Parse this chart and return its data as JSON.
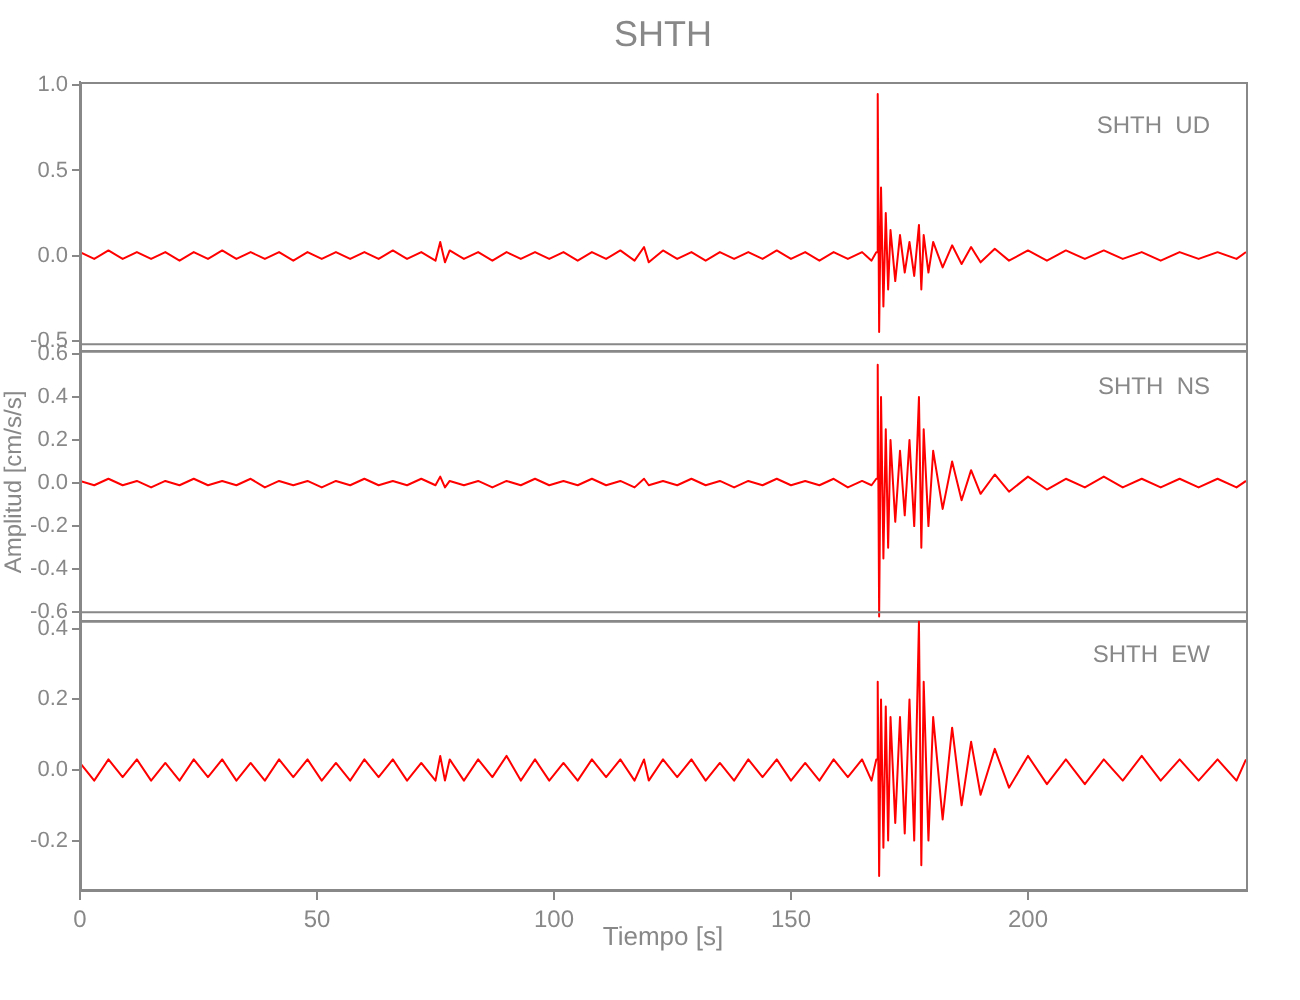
{
  "chart_data": [
    {
      "type": "line",
      "title": "SHTH",
      "annotations": [
        "SHTH  UD"
      ],
      "tick_labels": "y",
      "xlim": [
        0,
        246
      ],
      "xticks": [
        0,
        50,
        100,
        150,
        200
      ],
      "ylim": [
        -0.56,
        1.02
      ],
      "yticks": [
        {
          "value": -0.5,
          "label": "-0.5"
        },
        {
          "value": 0,
          "label": "0.0"
        },
        {
          "value": 0.5,
          "label": "0.5"
        },
        {
          "value": 1,
          "label": "1.0"
        }
      ],
      "x": [
        0,
        3,
        6,
        9,
        12,
        15,
        18,
        21,
        24,
        27,
        30,
        33,
        36,
        39,
        42,
        45,
        48,
        51,
        54,
        57,
        60,
        63,
        66,
        69,
        72,
        75,
        76,
        77,
        78,
        81,
        84,
        87,
        90,
        93,
        96,
        99,
        102,
        105,
        108,
        111,
        114,
        117,
        119,
        120,
        123,
        126,
        129,
        132,
        135,
        138,
        141,
        144,
        147,
        150,
        153,
        156,
        159,
        162,
        165,
        167,
        168,
        168.3,
        168.6,
        169,
        169.5,
        170,
        170.5,
        171,
        172,
        173,
        174,
        175,
        176,
        177,
        177.5,
        178,
        179,
        180,
        182,
        184,
        186,
        188,
        190,
        193,
        196,
        200,
        204,
        208,
        212,
        216,
        220,
        224,
        228,
        232,
        236,
        240,
        244,
        246
      ],
      "series": [
        {
          "color": "#ff0000",
          "values": [
            0.02,
            -0.02,
            0.03,
            -0.02,
            0.02,
            -0.02,
            0.02,
            -0.03,
            0.02,
            -0.02,
            0.03,
            -0.02,
            0.02,
            -0.02,
            0.02,
            -0.03,
            0.02,
            -0.02,
            0.02,
            -0.02,
            0.02,
            -0.02,
            0.03,
            -0.02,
            0.02,
            -0.03,
            0.08,
            -0.04,
            0.03,
            -0.02,
            0.02,
            -0.03,
            0.02,
            -0.02,
            0.02,
            -0.02,
            0.02,
            -0.03,
            0.02,
            -0.02,
            0.03,
            -0.03,
            0.05,
            -0.04,
            0.03,
            -0.02,
            0.02,
            -0.03,
            0.02,
            -0.02,
            0.02,
            -0.02,
            0.03,
            -0.02,
            0.02,
            -0.03,
            0.02,
            -0.02,
            0.02,
            -0.03,
            0.02,
            0.95,
            -0.45,
            0.4,
            -0.3,
            0.25,
            -0.2,
            0.15,
            -0.15,
            0.12,
            -0.1,
            0.08,
            -0.12,
            0.18,
            -0.2,
            0.12,
            -0.1,
            0.08,
            -0.07,
            0.06,
            -0.05,
            0.05,
            -0.04,
            0.04,
            -0.03,
            0.03,
            -0.03,
            0.03,
            -0.02,
            0.03,
            -0.02,
            0.02,
            -0.03,
            0.02,
            -0.02,
            0.02,
            -0.02,
            0.02
          ]
        }
      ]
    },
    {
      "type": "line",
      "ylabel": "Amplitud [cm/s/s]",
      "annotations": [
        "SHTH  NS"
      ],
      "tick_labels": "y",
      "xlim": [
        0,
        246
      ],
      "xticks": [
        0,
        50,
        100,
        150,
        200
      ],
      "ylim": [
        -0.64,
        0.65
      ],
      "yticks": [
        {
          "value": -0.6,
          "label": "-0.6"
        },
        {
          "value": -0.4,
          "label": "-0.4"
        },
        {
          "value": -0.2,
          "label": "-0.2"
        },
        {
          "value": 0,
          "label": "0.0"
        },
        {
          "value": 0.2,
          "label": "0.2"
        },
        {
          "value": 0.4,
          "label": "0.4"
        },
        {
          "value": 0.6,
          "label": "0.6"
        }
      ],
      "x": [
        0,
        3,
        6,
        9,
        12,
        15,
        18,
        21,
        24,
        27,
        30,
        33,
        36,
        39,
        42,
        45,
        48,
        51,
        54,
        57,
        60,
        63,
        66,
        69,
        72,
        75,
        76,
        77,
        78,
        81,
        84,
        87,
        90,
        93,
        96,
        99,
        102,
        105,
        108,
        111,
        114,
        117,
        119,
        120,
        123,
        126,
        129,
        132,
        135,
        138,
        141,
        144,
        147,
        150,
        153,
        156,
        159,
        162,
        165,
        167,
        168,
        168.3,
        168.6,
        169,
        169.5,
        170,
        170.5,
        171,
        172,
        173,
        174,
        175,
        176,
        177,
        177.5,
        178,
        179,
        180,
        182,
        184,
        186,
        188,
        190,
        193,
        196,
        200,
        204,
        208,
        212,
        216,
        220,
        224,
        228,
        232,
        236,
        240,
        244,
        246
      ],
      "series": [
        {
          "color": "#ff0000",
          "values": [
            0.01,
            -0.01,
            0.02,
            -0.01,
            0.01,
            -0.02,
            0.01,
            -0.01,
            0.02,
            -0.01,
            0.01,
            -0.01,
            0.02,
            -0.02,
            0.01,
            -0.01,
            0.01,
            -0.02,
            0.01,
            -0.01,
            0.02,
            -0.01,
            0.01,
            -0.01,
            0.02,
            -0.01,
            0.03,
            -0.02,
            0.01,
            -0.01,
            0.01,
            -0.02,
            0.01,
            -0.01,
            0.02,
            -0.01,
            0.01,
            -0.01,
            0.02,
            -0.01,
            0.01,
            -0.02,
            0.02,
            -0.01,
            0.01,
            -0.01,
            0.02,
            -0.01,
            0.01,
            -0.02,
            0.01,
            -0.01,
            0.02,
            -0.01,
            0.01,
            -0.01,
            0.02,
            -0.02,
            0.01,
            -0.01,
            0.02,
            0.55,
            -0.62,
            0.4,
            -0.35,
            0.25,
            -0.3,
            0.2,
            -0.18,
            0.15,
            -0.15,
            0.2,
            -0.2,
            0.4,
            -0.3,
            0.25,
            -0.2,
            0.15,
            -0.12,
            0.1,
            -0.08,
            0.06,
            -0.05,
            0.04,
            -0.04,
            0.03,
            -0.03,
            0.02,
            -0.02,
            0.03,
            -0.02,
            0.02,
            -0.02,
            0.02,
            -0.02,
            0.02,
            -0.02,
            0.01
          ]
        }
      ]
    },
    {
      "type": "line",
      "xlabel": "Tiempo [s]",
      "annotations": [
        "SHTH  EW"
      ],
      "xlim": [
        0,
        246
      ],
      "xticks": [
        0,
        50,
        100,
        150,
        200
      ],
      "ylim": [
        -0.34,
        0.45
      ],
      "yticks": [
        {
          "value": -0.2,
          "label": "-0.2"
        },
        {
          "value": 0,
          "label": "0.0"
        },
        {
          "value": 0.2,
          "label": "0.2"
        },
        {
          "value": 0.4,
          "label": "0.4"
        }
      ],
      "x": [
        0,
        3,
        6,
        9,
        12,
        15,
        18,
        21,
        24,
        27,
        30,
        33,
        36,
        39,
        42,
        45,
        48,
        51,
        54,
        57,
        60,
        63,
        66,
        69,
        72,
        75,
        76,
        77,
        78,
        81,
        84,
        87,
        90,
        93,
        96,
        99,
        102,
        105,
        108,
        111,
        114,
        117,
        119,
        120,
        123,
        126,
        129,
        132,
        135,
        138,
        141,
        144,
        147,
        150,
        153,
        156,
        159,
        162,
        165,
        167,
        168,
        168.3,
        168.6,
        169,
        169.5,
        170,
        170.5,
        171,
        172,
        173,
        174,
        175,
        176,
        177,
        177.5,
        178,
        179,
        180,
        182,
        184,
        186,
        188,
        190,
        193,
        196,
        200,
        204,
        208,
        212,
        216,
        220,
        224,
        228,
        232,
        236,
        240,
        244,
        246
      ],
      "series": [
        {
          "color": "#ff0000",
          "values": [
            0.02,
            -0.03,
            0.03,
            -0.02,
            0.03,
            -0.03,
            0.02,
            -0.03,
            0.03,
            -0.02,
            0.03,
            -0.03,
            0.02,
            -0.03,
            0.03,
            -0.02,
            0.03,
            -0.03,
            0.02,
            -0.03,
            0.03,
            -0.02,
            0.03,
            -0.03,
            0.02,
            -0.03,
            0.04,
            -0.03,
            0.03,
            -0.03,
            0.03,
            -0.02,
            0.04,
            -0.03,
            0.03,
            -0.03,
            0.02,
            -0.03,
            0.03,
            -0.02,
            0.03,
            -0.03,
            0.03,
            -0.03,
            0.03,
            -0.02,
            0.03,
            -0.03,
            0.02,
            -0.03,
            0.03,
            -0.02,
            0.03,
            -0.03,
            0.02,
            -0.03,
            0.03,
            -0.02,
            0.03,
            -0.03,
            0.03,
            0.25,
            -0.3,
            0.2,
            -0.22,
            0.18,
            -0.2,
            0.15,
            -0.15,
            0.15,
            -0.18,
            0.2,
            -0.2,
            0.42,
            -0.27,
            0.25,
            -0.2,
            0.15,
            -0.14,
            0.12,
            -0.1,
            0.08,
            -0.07,
            0.06,
            -0.05,
            0.04,
            -0.04,
            0.03,
            -0.04,
            0.03,
            -0.03,
            0.04,
            -0.03,
            0.03,
            -0.03,
            0.03,
            -0.03,
            0.03
          ]
        }
      ]
    }
  ]
}
